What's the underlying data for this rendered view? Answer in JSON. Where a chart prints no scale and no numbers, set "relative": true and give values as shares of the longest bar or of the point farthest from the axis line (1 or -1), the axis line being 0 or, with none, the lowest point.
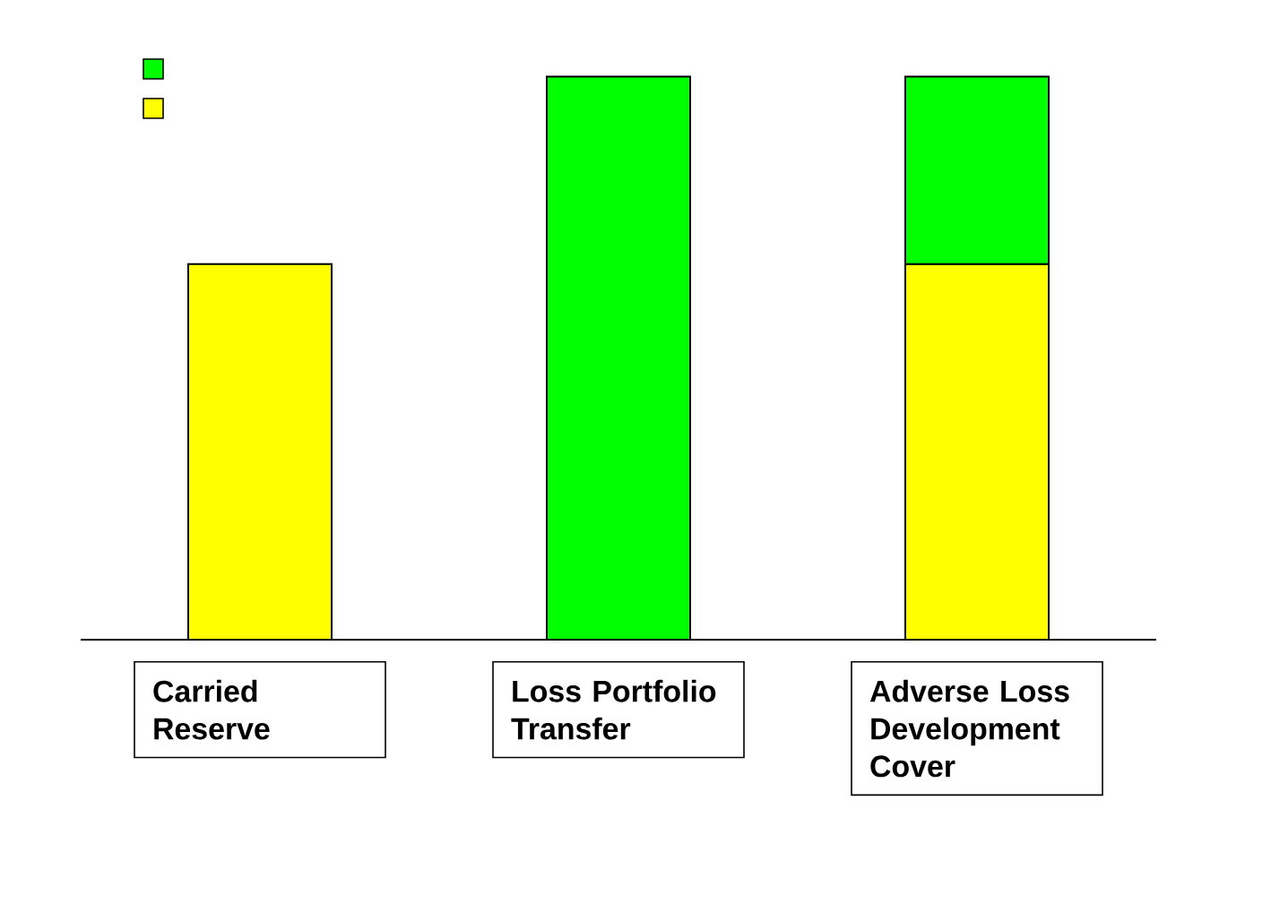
{
  "chart_data": {
    "type": "bar",
    "stacked": true,
    "relative": true,
    "categories": [
      "Carried Reserve",
      "Loss Portfolio Transfer",
      "Adverse Loss Development Cover"
    ],
    "series": [
      {
        "color": "#ffff00",
        "values": [
          0.667,
          null,
          0.667
        ]
      },
      {
        "color": "#00ff00",
        "values": [
          null,
          1,
          0.333
        ]
      }
    ]
  }
}
